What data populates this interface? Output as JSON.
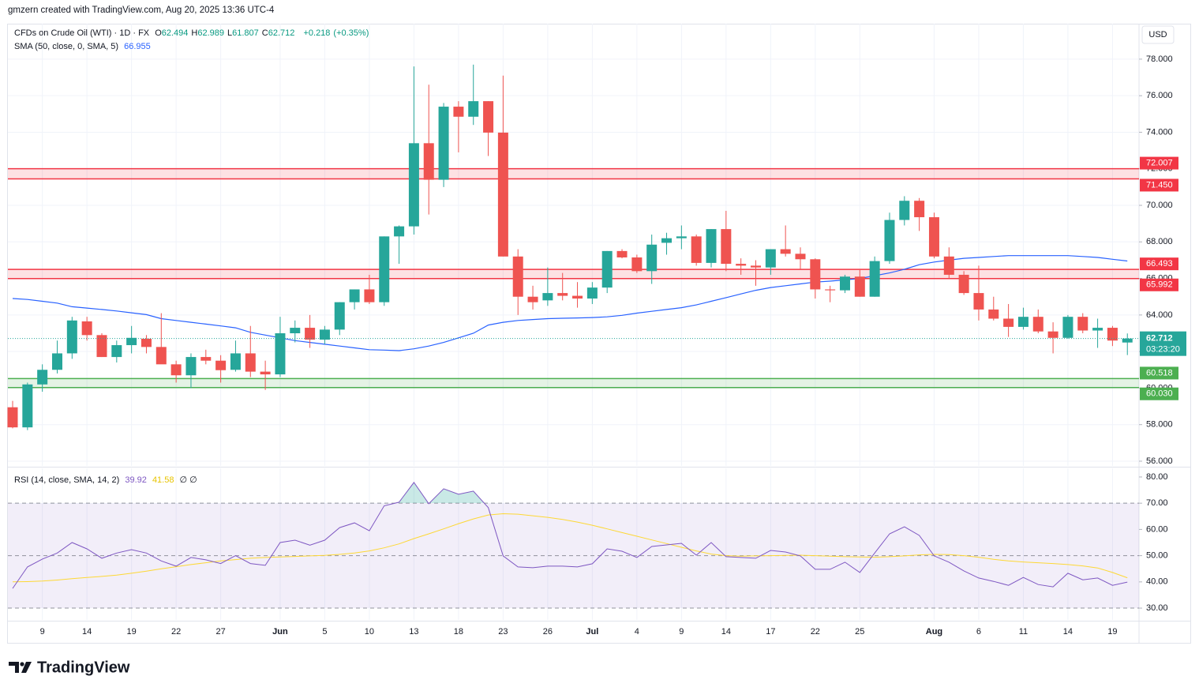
{
  "header": "gmzern created with TradingView.com, Aug 20, 2025 13:36 UTC-4",
  "brand": "TradingView",
  "currency": "USD",
  "countdown": "03:23:20",
  "chart_data": [
    {
      "type": "candlestick",
      "title": "CFDs on Crude Oil (WTI) · 1D · FX",
      "ohlc_labels": [
        "O",
        "H",
        "L",
        "C"
      ],
      "change": "+0.218",
      "change_pct": "(+0.35%)",
      "up_color": "#26a69a",
      "down_color": "#ef5350",
      "categories": [
        null,
        null,
        "9",
        null,
        null,
        "14",
        null,
        null,
        "19",
        null,
        null,
        "22",
        null,
        null,
        "27",
        null,
        null,
        null,
        "Jun",
        null,
        null,
        "5",
        null,
        null,
        "10",
        null,
        null,
        "13",
        null,
        null,
        "18",
        null,
        null,
        "23",
        null,
        null,
        "26",
        null,
        null,
        "Jul",
        null,
        null,
        "4",
        null,
        null,
        "9",
        null,
        null,
        "14",
        null,
        null,
        "17",
        null,
        null,
        "22",
        null,
        null,
        "25",
        null,
        null,
        null,
        null,
        "Aug",
        null,
        null,
        "6",
        null,
        null,
        "11",
        null,
        null,
        "14",
        null,
        null,
        "19",
        null
      ],
      "open": [
        58.95,
        57.85,
        60.2,
        61.0,
        61.9,
        63.65,
        62.9,
        61.7,
        62.35,
        62.7,
        62.25,
        61.3,
        60.7,
        61.7,
        61.5,
        61.0,
        61.9,
        60.9,
        60.75,
        63.0,
        63.3,
        62.65,
        63.2,
        64.7,
        65.4,
        64.7,
        68.3,
        68.85,
        73.4,
        71.4,
        75.4,
        74.85,
        75.7,
        73.98,
        67.2,
        65.0,
        64.8,
        65.2,
        65.05,
        64.9,
        65.5,
        67.5,
        67.15,
        66.4,
        67.95,
        68.2,
        68.3,
        66.85,
        68.7,
        66.8,
        66.7,
        66.6,
        67.6,
        67.35,
        67.05,
        65.4,
        65.35,
        66.1,
        65.0,
        66.95,
        69.2,
        70.25,
        69.35,
        67.2,
        66.2,
        65.2,
        64.3,
        63.8,
        63.35,
        63.9,
        63.1,
        62.75,
        63.9,
        63.15,
        63.3,
        62.494
      ],
      "high": [
        59.3,
        60.3,
        61.3,
        62.6,
        63.9,
        63.9,
        63.0,
        62.6,
        63.4,
        62.9,
        64.1,
        61.5,
        61.9,
        62.1,
        61.8,
        62.6,
        63.4,
        61.5,
        63.9,
        63.7,
        64.0,
        63.4,
        64.7,
        65.4,
        66.2,
        68.3,
        68.9,
        77.6,
        76.6,
        75.6,
        75.7,
        77.7,
        75.7,
        77.1,
        67.6,
        65.6,
        66.6,
        66.3,
        65.8,
        65.8,
        67.5,
        67.6,
        67.3,
        68.4,
        68.5,
        68.9,
        68.4,
        68.7,
        69.7,
        67.1,
        67.0,
        67.6,
        68.9,
        67.7,
        67.1,
        65.6,
        66.2,
        66.5,
        67.2,
        69.6,
        70.5,
        70.4,
        69.6,
        67.7,
        66.4,
        66.7,
        65.0,
        64.6,
        64.4,
        64.3,
        63.6,
        64.0,
        64.1,
        63.8,
        63.4,
        62.989
      ],
      "low": [
        57.8,
        57.7,
        59.8,
        60.8,
        61.6,
        62.6,
        61.7,
        61.4,
        61.9,
        61.9,
        61.4,
        60.3,
        60.0,
        61.3,
        60.3,
        60.9,
        60.6,
        59.9,
        60.6,
        62.5,
        62.2,
        62.4,
        62.9,
        64.3,
        64.6,
        64.5,
        66.8,
        68.4,
        69.5,
        71.0,
        72.9,
        74.4,
        72.7,
        67.2,
        64.0,
        64.3,
        64.5,
        64.8,
        64.4,
        64.6,
        65.2,
        67.1,
        66.3,
        65.7,
        67.3,
        67.6,
        66.7,
        66.6,
        66.4,
        66.2,
        65.6,
        66.2,
        67.2,
        66.5,
        64.9,
        64.7,
        65.2,
        65.0,
        65.0,
        66.8,
        68.9,
        68.6,
        67.1,
        66.0,
        65.1,
        63.7,
        63.7,
        62.8,
        63.2,
        63.0,
        61.9,
        62.7,
        63.0,
        62.2,
        62.3,
        61.807
      ],
      "close": [
        57.85,
        60.2,
        61.0,
        61.9,
        63.7,
        62.9,
        61.7,
        62.35,
        62.75,
        62.25,
        61.3,
        60.7,
        61.7,
        61.5,
        60.98,
        61.9,
        60.9,
        60.75,
        63.0,
        63.3,
        62.65,
        63.2,
        64.7,
        65.4,
        64.7,
        68.3,
        68.85,
        73.4,
        71.4,
        75.4,
        74.85,
        75.7,
        73.98,
        67.2,
        65.0,
        64.7,
        65.2,
        65.05,
        64.9,
        65.5,
        67.5,
        67.15,
        66.4,
        67.85,
        68.2,
        68.3,
        66.85,
        68.7,
        66.8,
        66.7,
        66.6,
        67.6,
        67.35,
        67.05,
        65.4,
        65.35,
        66.1,
        65.0,
        66.95,
        69.2,
        70.25,
        69.35,
        67.2,
        66.2,
        65.2,
        64.3,
        63.8,
        63.35,
        63.9,
        63.1,
        62.75,
        63.9,
        63.15,
        63.3,
        62.6,
        62.712
      ],
      "sma": {
        "name": "SMA (50, close, 0, SMA, 5)",
        "color": "#2962ff",
        "values": [
          64.9,
          64.85,
          64.75,
          64.65,
          64.45,
          64.38,
          64.3,
          64.22,
          64.12,
          64.02,
          63.8,
          63.7,
          63.6,
          63.5,
          63.4,
          63.3,
          63.05,
          62.9,
          62.75,
          62.6,
          62.5,
          62.4,
          62.3,
          62.2,
          62.1,
          62.08,
          62.05,
          62.15,
          62.3,
          62.5,
          62.75,
          63.0,
          63.45,
          63.6,
          63.7,
          63.75,
          63.8,
          63.82,
          63.84,
          63.86,
          63.9,
          63.98,
          64.1,
          64.2,
          64.3,
          64.4,
          64.55,
          64.75,
          64.95,
          65.15,
          65.35,
          65.5,
          65.6,
          65.7,
          65.8,
          65.85,
          65.92,
          66.0,
          66.15,
          66.3,
          66.5,
          66.75,
          66.9,
          67.0,
          67.1,
          67.15,
          67.2,
          67.25,
          67.25,
          67.25,
          67.25,
          67.25,
          67.2,
          67.15,
          67.05,
          66.955
        ]
      },
      "zones": [
        {
          "top": 72.007,
          "bottom": 71.45,
          "labels": [
            "72.007",
            "71.450"
          ],
          "color": "#f23645"
        },
        {
          "top": 66.493,
          "bottom": 65.992,
          "labels": [
            "66.493",
            "65.992"
          ],
          "color": "#f23645"
        },
        {
          "top": 60.518,
          "bottom": 60.03,
          "labels": [
            "60.518",
            "60.030"
          ],
          "color": "#4caf50"
        }
      ],
      "ylim": [
        55.74,
        79.94
      ],
      "yticks": [
        {
          "value": 56,
          "label": "56.000"
        },
        {
          "value": 58,
          "label": "58.000"
        },
        {
          "value": 60,
          "label": "60.000"
        },
        {
          "value": 62,
          "label": "62.000"
        },
        {
          "value": 64,
          "label": "64.000"
        },
        {
          "value": 66,
          "label": "66.000"
        },
        {
          "value": 68,
          "label": "68.000"
        },
        {
          "value": 70,
          "label": "70.000"
        },
        {
          "value": 72,
          "label": "72.000"
        },
        {
          "value": 74,
          "label": "74.000"
        },
        {
          "value": 76,
          "label": "76.000"
        },
        {
          "value": 78,
          "label": "78.000"
        }
      ],
      "grid": true
    },
    {
      "type": "line",
      "title": "RSI (14, close, SMA, 14, 2)",
      "extra": "∅ ∅",
      "series": [
        {
          "color": "#7e57c2",
          "values": [
            37.5,
            45.7,
            48.7,
            51,
            55,
            52.6,
            49,
            51,
            52.3,
            51,
            48,
            46,
            49.3,
            48.4,
            47,
            50,
            47,
            46.3,
            55,
            55.9,
            54,
            55.9,
            60.7,
            62.5,
            59.5,
            69,
            70.4,
            77.9,
            69.8,
            75.5,
            73.4,
            74.6,
            68.3,
            49.9,
            45.7,
            45.4,
            46,
            46,
            45.7,
            46.9,
            52.6,
            51.7,
            49.3,
            53.5,
            54.1,
            54.7,
            50.2,
            55,
            49.6,
            49.3,
            49,
            52,
            51.4,
            49.9,
            44.8,
            44.8,
            47.5,
            43.6,
            51,
            58.3,
            61,
            57.7,
            49.9,
            47.5,
            44.2,
            41.5,
            40.2,
            38.7,
            41.7,
            39,
            38.1,
            43.3,
            40.8,
            41.5,
            38.7,
            39.92
          ]
        },
        {
          "color": "#fdd835",
          "values": [
            40.0,
            40.1,
            40.3,
            40.7,
            41.2,
            41.7,
            42.1,
            42.6,
            43.3,
            44.1,
            45.0,
            45.8,
            46.6,
            47.3,
            48.0,
            48.5,
            49.0,
            49.3,
            49.5,
            49.7,
            49.9,
            50.1,
            50.5,
            51.0,
            51.8,
            53.0,
            54.5,
            56.5,
            58.3,
            60.2,
            62.2,
            64.0,
            65.5,
            66.0,
            65.8,
            65.2,
            64.6,
            63.8,
            62.8,
            61.6,
            60.2,
            58.8,
            57.4,
            56.0,
            54.6,
            53.2,
            51.8,
            50.6,
            50.0,
            49.8,
            49.9,
            50.0,
            50.1,
            50.2,
            50.0,
            49.8,
            49.6,
            49.5,
            49.4,
            49.6,
            49.9,
            50.3,
            50.5,
            50.4,
            50.0,
            49.4,
            48.6,
            48.0,
            47.6,
            47.3,
            47.0,
            46.6,
            46.1,
            45.3,
            43.6,
            41.58
          ]
        }
      ],
      "levels": [
        70,
        50,
        30
      ],
      "band": [
        30,
        70
      ],
      "ylim": [
        25.5,
        83.3
      ],
      "yticks": [
        {
          "value": 30,
          "label": "30.00"
        },
        {
          "value": 40,
          "label": "40.00"
        },
        {
          "value": 50,
          "label": "50.00"
        },
        {
          "value": 60,
          "label": "60.00"
        },
        {
          "value": 70,
          "label": "70.00"
        },
        {
          "value": 80,
          "label": "80.00"
        }
      ]
    }
  ]
}
